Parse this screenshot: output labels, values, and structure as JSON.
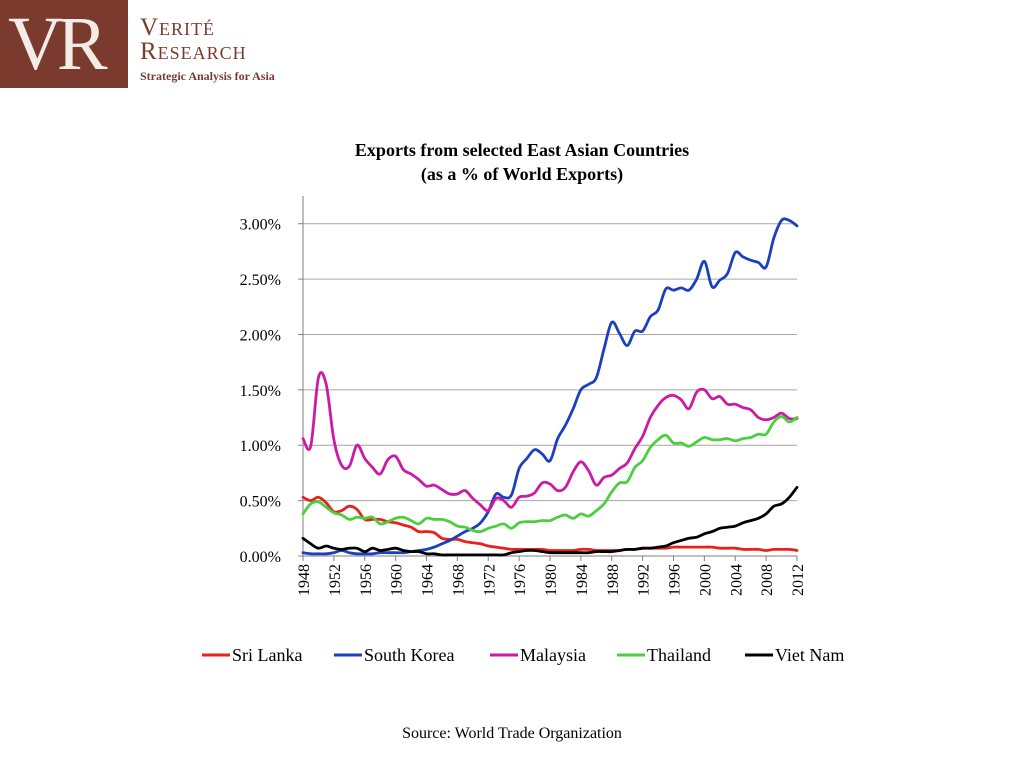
{
  "header": {
    "logo_mark": "VR",
    "logo_line1": "Verité",
    "logo_line2": "Research",
    "logo_tagline": "Strategic Analysis for Asia",
    "brand_color": "#7a3b2e"
  },
  "source_note": "Source: World Trade Organization",
  "chart_data": {
    "type": "line",
    "title_line1": "Exports from selected East Asian Countries",
    "title_line2": "(as a % of World Exports)",
    "xlabel": "",
    "ylabel": "",
    "xlim": [
      1948,
      2012
    ],
    "ylim": [
      0,
      0.0325
    ],
    "yticks": [
      0,
      0.005,
      0.01,
      0.015,
      0.02,
      0.025,
      0.03
    ],
    "ytick_labels": [
      "0.00%",
      "0.50%",
      "1.00%",
      "1.50%",
      "2.00%",
      "2.50%",
      "3.00%"
    ],
    "xticks": [
      1948,
      1952,
      1956,
      1960,
      1964,
      1968,
      1972,
      1976,
      1980,
      1984,
      1988,
      1992,
      1996,
      2000,
      2004,
      2008,
      2012
    ],
    "xtick_labels": [
      "1948",
      "1952",
      "1956",
      "1960",
      "1964",
      "1968",
      "1972",
      "1976",
      "1980",
      "1984",
      "1988",
      "1992",
      "1996",
      "2000",
      "2004",
      "2008",
      "2012"
    ],
    "grid": "horizontal",
    "legend_position": "bottom",
    "series": [
      {
        "name": "Sri Lanka",
        "color": "#e8211d",
        "x": [
          1948,
          1949,
          1950,
          1951,
          1952,
          1953,
          1954,
          1955,
          1956,
          1957,
          1958,
          1959,
          1960,
          1961,
          1962,
          1963,
          1964,
          1965,
          1966,
          1967,
          1968,
          1969,
          1970,
          1971,
          1972,
          1973,
          1974,
          1975,
          1976,
          1977,
          1978,
          1979,
          1980,
          1981,
          1982,
          1983,
          1984,
          1985,
          1986,
          1987,
          1988,
          1989,
          1990,
          1991,
          1992,
          1993,
          1994,
          1995,
          1996,
          1997,
          1998,
          1999,
          2000,
          2001,
          2002,
          2003,
          2004,
          2005,
          2006,
          2007,
          2008,
          2009,
          2010,
          2011,
          2012
        ],
        "y": [
          0.0053,
          0.005,
          0.0053,
          0.0048,
          0.004,
          0.0041,
          0.0045,
          0.0042,
          0.0033,
          0.0033,
          0.0033,
          0.0031,
          0.003,
          0.0028,
          0.0026,
          0.0022,
          0.0022,
          0.0021,
          0.0016,
          0.0015,
          0.0015,
          0.0013,
          0.0012,
          0.0011,
          0.0009,
          0.0008,
          0.0007,
          0.0006,
          0.0006,
          0.0006,
          0.0006,
          0.0006,
          0.0005,
          0.0005,
          0.0005,
          0.0005,
          0.0006,
          0.0006,
          0.0005,
          0.0005,
          0.0005,
          0.0005,
          0.0006,
          0.0006,
          0.0007,
          0.0007,
          0.0007,
          0.0007,
          0.0008,
          0.0008,
          0.0008,
          0.0008,
          0.0008,
          0.0008,
          0.0007,
          0.0007,
          0.0007,
          0.0006,
          0.0006,
          0.0006,
          0.0005,
          0.0006,
          0.0006,
          0.0006,
          0.0005
        ]
      },
      {
        "name": "South Korea",
        "color": "#1b3fbf",
        "x": [
          1948,
          1949,
          1950,
          1951,
          1952,
          1953,
          1954,
          1955,
          1956,
          1957,
          1958,
          1959,
          1960,
          1961,
          1962,
          1963,
          1964,
          1965,
          1966,
          1967,
          1968,
          1969,
          1970,
          1971,
          1972,
          1973,
          1974,
          1975,
          1976,
          1977,
          1978,
          1979,
          1980,
          1981,
          1982,
          1983,
          1984,
          1985,
          1986,
          1987,
          1988,
          1989,
          1990,
          1991,
          1992,
          1993,
          1994,
          1995,
          1996,
          1997,
          1998,
          1999,
          2000,
          2001,
          2002,
          2003,
          2004,
          2005,
          2006,
          2007,
          2008,
          2009,
          2010,
          2011,
          2012
        ],
        "y": [
          0.0003,
          0.0002,
          0.0002,
          0.0002,
          0.0003,
          0.0005,
          0.0003,
          0.0002,
          0.0002,
          0.0002,
          0.0003,
          0.0003,
          0.0003,
          0.0003,
          0.0004,
          0.0005,
          0.0006,
          0.0008,
          0.0011,
          0.0014,
          0.0018,
          0.0022,
          0.0025,
          0.003,
          0.004,
          0.0056,
          0.0053,
          0.0055,
          0.0079,
          0.0088,
          0.0096,
          0.0092,
          0.0086,
          0.0106,
          0.0118,
          0.0133,
          0.015,
          0.0155,
          0.0161,
          0.0187,
          0.0211,
          0.0201,
          0.019,
          0.0203,
          0.0203,
          0.0216,
          0.0222,
          0.0241,
          0.024,
          0.0242,
          0.024,
          0.025,
          0.0266,
          0.0243,
          0.0249,
          0.0255,
          0.0274,
          0.027,
          0.0267,
          0.0265,
          0.0261,
          0.0287,
          0.0303,
          0.0303,
          0.0298
        ]
      },
      {
        "name": "Malaysia",
        "color": "#cc1aa5",
        "x": [
          1948,
          1949,
          1950,
          1951,
          1952,
          1953,
          1954,
          1955,
          1956,
          1957,
          1958,
          1959,
          1960,
          1961,
          1962,
          1963,
          1964,
          1965,
          1966,
          1967,
          1968,
          1969,
          1970,
          1971,
          1972,
          1973,
          1974,
          1975,
          1976,
          1977,
          1978,
          1979,
          1980,
          1981,
          1982,
          1983,
          1984,
          1985,
          1986,
          1987,
          1988,
          1989,
          1990,
          1991,
          1992,
          1993,
          1994,
          1995,
          1996,
          1997,
          1998,
          1999,
          2000,
          2001,
          2002,
          2003,
          2004,
          2005,
          2006,
          2007,
          2008,
          2009,
          2010,
          2011,
          2012
        ],
        "y": [
          0.0106,
          0.0099,
          0.0161,
          0.0155,
          0.0105,
          0.0082,
          0.0081,
          0.01,
          0.0088,
          0.008,
          0.0074,
          0.0087,
          0.009,
          0.0078,
          0.0074,
          0.0069,
          0.0063,
          0.0064,
          0.006,
          0.0056,
          0.0056,
          0.0059,
          0.0052,
          0.0046,
          0.0041,
          0.0052,
          0.005,
          0.0044,
          0.0053,
          0.0054,
          0.0057,
          0.0066,
          0.0065,
          0.0059,
          0.0062,
          0.0076,
          0.0085,
          0.0077,
          0.0064,
          0.0071,
          0.0073,
          0.0079,
          0.0084,
          0.0097,
          0.0108,
          0.0125,
          0.0136,
          0.0143,
          0.0145,
          0.0141,
          0.0133,
          0.0148,
          0.015,
          0.0142,
          0.0144,
          0.0137,
          0.0137,
          0.0134,
          0.0132,
          0.0125,
          0.0123,
          0.0125,
          0.0129,
          0.0124,
          0.0124
        ]
      },
      {
        "name": "Thailand",
        "color": "#4ccf3c",
        "x": [
          1948,
          1949,
          1950,
          1951,
          1952,
          1953,
          1954,
          1955,
          1956,
          1957,
          1958,
          1959,
          1960,
          1961,
          1962,
          1963,
          1964,
          1965,
          1966,
          1967,
          1968,
          1969,
          1970,
          1971,
          1972,
          1973,
          1974,
          1975,
          1976,
          1977,
          1978,
          1979,
          1980,
          1981,
          1982,
          1983,
          1984,
          1985,
          1986,
          1987,
          1988,
          1989,
          1990,
          1991,
          1992,
          1993,
          1994,
          1995,
          1996,
          1997,
          1998,
          1999,
          2000,
          2001,
          2002,
          2003,
          2004,
          2005,
          2006,
          2007,
          2008,
          2009,
          2010,
          2011,
          2012
        ],
        "y": [
          0.0038,
          0.0047,
          0.0049,
          0.0044,
          0.0039,
          0.0037,
          0.0033,
          0.0035,
          0.0034,
          0.0035,
          0.0029,
          0.0031,
          0.0034,
          0.0035,
          0.0032,
          0.0029,
          0.0034,
          0.0033,
          0.0033,
          0.0031,
          0.0027,
          0.0026,
          0.0023,
          0.0022,
          0.0025,
          0.0027,
          0.0029,
          0.0025,
          0.003,
          0.0031,
          0.0031,
          0.0032,
          0.0032,
          0.0035,
          0.0037,
          0.0034,
          0.0038,
          0.0036,
          0.0041,
          0.0047,
          0.0058,
          0.0066,
          0.0067,
          0.008,
          0.0086,
          0.0098,
          0.0105,
          0.0109,
          0.0102,
          0.0102,
          0.0099,
          0.0103,
          0.0107,
          0.0105,
          0.0105,
          0.0106,
          0.0104,
          0.0106,
          0.0107,
          0.011,
          0.011,
          0.0121,
          0.0126,
          0.0121,
          0.0125
        ]
      },
      {
        "name": "Viet Nam",
        "color": "#000000",
        "x": [
          1948,
          1949,
          1950,
          1951,
          1952,
          1953,
          1954,
          1955,
          1956,
          1957,
          1958,
          1959,
          1960,
          1961,
          1962,
          1963,
          1964,
          1965,
          1966,
          1967,
          1968,
          1969,
          1970,
          1971,
          1972,
          1973,
          1974,
          1975,
          1976,
          1977,
          1978,
          1979,
          1980,
          1981,
          1982,
          1983,
          1984,
          1985,
          1986,
          1987,
          1988,
          1989,
          1990,
          1991,
          1992,
          1993,
          1994,
          1995,
          1996,
          1997,
          1998,
          1999,
          2000,
          2001,
          2002,
          2003,
          2004,
          2005,
          2006,
          2007,
          2008,
          2009,
          2010,
          2011,
          2012
        ],
        "y": [
          0.0016,
          0.0011,
          0.0007,
          0.0009,
          0.0007,
          0.0006,
          0.0007,
          0.0007,
          0.0004,
          0.0007,
          0.0005,
          0.0006,
          0.0007,
          0.0005,
          0.0004,
          0.0004,
          0.0002,
          0.0002,
          0.0001,
          0.0001,
          0.0001,
          0.0001,
          0.0001,
          0.0001,
          0.0001,
          0.0001,
          0.0001,
          0.0003,
          0.0004,
          0.0005,
          0.0005,
          0.0004,
          0.0003,
          0.0003,
          0.0003,
          0.0003,
          0.0003,
          0.0003,
          0.0004,
          0.0004,
          0.0004,
          0.0005,
          0.0006,
          0.0006,
          0.0007,
          0.0007,
          0.0008,
          0.0009,
          0.0012,
          0.0014,
          0.0016,
          0.0017,
          0.002,
          0.0022,
          0.0025,
          0.0026,
          0.0027,
          0.003,
          0.0032,
          0.0034,
          0.0038,
          0.0045,
          0.0047,
          0.0053,
          0.0062
        ]
      }
    ]
  }
}
